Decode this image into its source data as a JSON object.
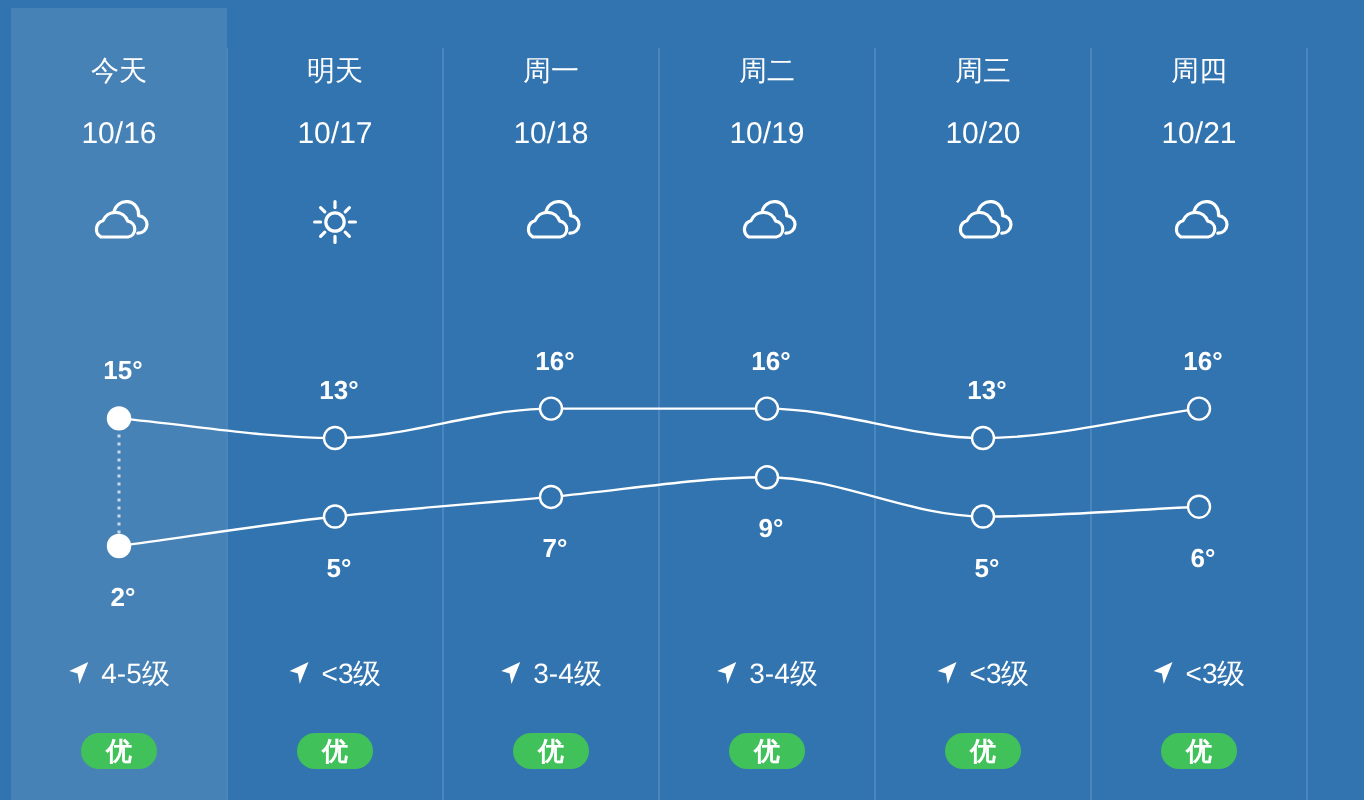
{
  "chart_data": {
    "type": "line",
    "categories": [
      "今天\n10/16",
      "明天\n10/17",
      "周一\n10/18",
      "周二\n10/19",
      "周三\n10/20",
      "周四\n10/21"
    ],
    "series": [
      {
        "color": "#ffffff",
        "values": [
          15,
          13,
          16,
          16,
          13,
          16
        ],
        "value_labels": [
          "15°",
          "13°",
          "16°",
          "16°",
          "13°",
          "16°"
        ]
      },
      {
        "color": "#ffffff",
        "values": [
          2,
          5,
          7,
          9,
          5,
          6
        ],
        "value_labels": [
          "2°",
          "5°",
          "7°",
          "9°",
          "5°",
          "6°"
        ]
      }
    ],
    "marker": "circle",
    "line_style": "solid",
    "grid": "x",
    "bands": [
      {
        "axis": "x",
        "from": "今天\n10/16",
        "to": "今天\n10/16",
        "color": "#4782b7"
      }
    ],
    "ref_lines": [
      {
        "axis": "x",
        "value": "今天\n10/16",
        "color": "#c9dbec",
        "line_style": "dotted"
      }
    ],
    "annotations": [
      "4-5级",
      "<3级",
      "3-4级",
      "3-4级",
      "<3级",
      "<3级",
      "优",
      "优",
      "优",
      "优",
      "优",
      "优"
    ]
  }
}
